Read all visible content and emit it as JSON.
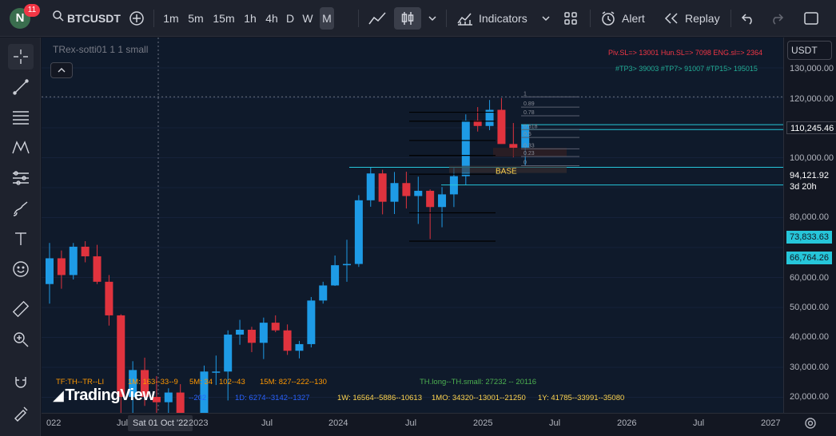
{
  "header": {
    "avatar_letter": "N",
    "notification_count": "11",
    "symbol": "BTCUSDT",
    "intervals": [
      "1m",
      "5m",
      "15m",
      "1h",
      "4h",
      "D",
      "W",
      "M"
    ],
    "active_interval": "M",
    "indicators_label": "Indicators",
    "alert_label": "Alert",
    "replay_label": "Replay"
  },
  "legend": {
    "title": "TRex-sotti01 1 1 small",
    "top_red": "Piv.SL=> 13001  Hun.SL=> 7098  ENG.sl=> 2364",
    "top_green": "#TP3> 39003  #TP7> 91007  #TP15> 195015",
    "bottom_orange_1": "TF:TH--TR--LI",
    "bottom_orange_2": "1M: 163--33--9",
    "bottom_orange_3": "5M: 34",
    "bottom_orange_4": "102--43",
    "bottom_orange_5": "15M: 827--222--130",
    "bottom_blue_1": "--202",
    "bottom_blue_2": "1D: 6274--3142--1327",
    "bottom_green": "TH.long--TH.small: 27232 -- 20116",
    "bottom_yellow_1": "1W: 16564--5886--10613",
    "bottom_yellow_2": "1MO: 34320--13001--21250",
    "bottom_yellow_3": "1Y: 41785--33991--35080",
    "base_label": "BASE",
    "watermark": "TradingView"
  },
  "price_axis": {
    "currency": "USDT",
    "ticks": [
      "130,000.00",
      "120,000.00",
      "110,000.00",
      "100,000.00",
      "90,000.00",
      "80,000.00",
      "70,000.00",
      "60,000.00",
      "50,000.00",
      "40,000.00",
      "30,000.00",
      "20,000.00"
    ],
    "label_high": "110,245.46",
    "label_current": "94,121.92",
    "label_countdown": "3d 20h",
    "label_level1": "73,833.63",
    "label_level2": "66,764.26"
  },
  "time_axis": {
    "ticks": [
      "022",
      "Jul",
      "2023",
      "Jul",
      "2024",
      "Jul",
      "2025",
      "Jul",
      "2026",
      "Jul",
      "2027"
    ],
    "hover_label": "Sat 01 Oct '22"
  },
  "fib_labels": {
    "f1": "1",
    "f089": "0.89",
    "f078": "0.78",
    "f0618": "0.618",
    "f05": "0.5",
    "f033": "0.33",
    "f023": "0.23",
    "f0": "0"
  },
  "colors": {
    "bull": "#1e9be6",
    "bear": "#e0333e",
    "level_line": "#26c6da",
    "bg": "#0f1a2b"
  }
}
